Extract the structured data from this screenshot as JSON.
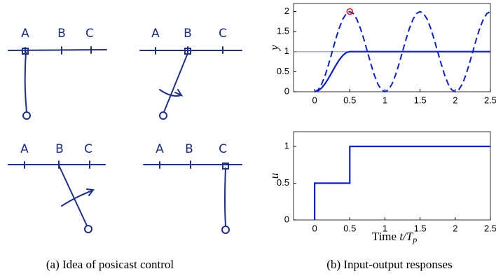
{
  "sketches": [
    {
      "labels": [
        "A",
        "B",
        "C"
      ]
    },
    {
      "labels": [
        "A",
        "B",
        "C"
      ]
    },
    {
      "labels": [
        "A",
        "B",
        "C"
      ]
    },
    {
      "labels": [
        "A",
        "B",
        "C"
      ]
    }
  ],
  "captions": [
    "(a) Idea of posicast control",
    "(b) Input-output responses"
  ],
  "chart_data": [
    {
      "type": "line",
      "ylabel": "y",
      "x": [
        0,
        0.05,
        0.1,
        0.15,
        0.2,
        0.25,
        0.3,
        0.35,
        0.4,
        0.45,
        0.5,
        0.55,
        0.6,
        0.65,
        0.7,
        0.75,
        0.8,
        0.85,
        0.9,
        0.95,
        1,
        1.05,
        1.1,
        1.15,
        1.2,
        1.25,
        1.3,
        1.35,
        1.4,
        1.45,
        1.5,
        1.55,
        1.6,
        1.65,
        1.7,
        1.75,
        1.8,
        1.85,
        1.9,
        1.95,
        2,
        2.05,
        2.1,
        2.15,
        2.2,
        2.25,
        2.3,
        2.35,
        2.4,
        2.45,
        2.5
      ],
      "series": [
        {
          "color": "#6f8cff",
          "linewidth": 1,
          "x": [
            -0.3,
            2.5
          ],
          "values": [
            1,
            1
          ]
        },
        {
          "color": "#0a1fd6",
          "linewidth": 2,
          "dash": true,
          "values": [
            0,
            0.049,
            0.191,
            0.412,
            0.691,
            1,
            1.309,
            1.588,
            1.809,
            1.951,
            2,
            1.951,
            1.809,
            1.588,
            1.309,
            1,
            0.691,
            0.412,
            0.191,
            0.049,
            0,
            0.049,
            0.191,
            0.412,
            0.691,
            1,
            1.309,
            1.588,
            1.809,
            1.951,
            2,
            1.951,
            1.809,
            1.588,
            1.309,
            1,
            0.691,
            0.412,
            0.191,
            0.049,
            0,
            0.049,
            0.191,
            0.412,
            0.691,
            1,
            1.309,
            1.588,
            1.809,
            1.951,
            2
          ]
        },
        {
          "color": "#0a1fd6",
          "linewidth": 2.2,
          "values": [
            0,
            0.024,
            0.095,
            0.206,
            0.345,
            0.5,
            0.655,
            0.794,
            0.905,
            0.976,
            1,
            1,
            1,
            1,
            1,
            1,
            1,
            1,
            1,
            1,
            1,
            1,
            1,
            1,
            1,
            1,
            1,
            1,
            1,
            1,
            1,
            1,
            1,
            1,
            1,
            1,
            1,
            1,
            1,
            1,
            1,
            1,
            1,
            1,
            1,
            1,
            1,
            1,
            1,
            1,
            1
          ]
        }
      ],
      "markers": [
        {
          "x": 0.5,
          "y": 2,
          "color": "#e0101a"
        }
      ],
      "xlim": [
        -0.3,
        2.5
      ],
      "ylim": [
        0,
        2.2
      ],
      "xticks": [
        0,
        0.5,
        1,
        1.5,
        2,
        2.5
      ],
      "yticks": [
        0,
        0.5,
        1,
        1.5,
        2
      ]
    },
    {
      "type": "line",
      "ylabel": "u",
      "xlabel": [
        "Time ",
        "t/T",
        "p"
      ],
      "x": [
        0,
        0,
        0.5,
        0.5,
        2.5
      ],
      "series": [
        {
          "color": "#0a1fd6",
          "linewidth": 2.2,
          "values": [
            0,
            0.5,
            0.5,
            1,
            1
          ]
        }
      ],
      "xlim": [
        -0.3,
        2.5
      ],
      "ylim": [
        0,
        1.2
      ],
      "xticks": [
        0,
        0.5,
        1,
        1.5,
        2,
        2.5
      ],
      "yticks": [
        0,
        0.5,
        1
      ]
    }
  ]
}
